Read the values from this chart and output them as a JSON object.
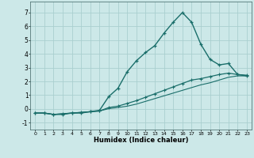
{
  "xlabel": "Humidex (Indice chaleur)",
  "xlim": [
    -0.5,
    23.5
  ],
  "ylim": [
    -1.5,
    7.8
  ],
  "yticks": [
    -1,
    0,
    1,
    2,
    3,
    4,
    5,
    6,
    7
  ],
  "xticks": [
    0,
    1,
    2,
    3,
    4,
    5,
    6,
    7,
    8,
    9,
    10,
    11,
    12,
    13,
    14,
    15,
    16,
    17,
    18,
    19,
    20,
    21,
    22,
    23
  ],
  "bg_color": "#cce8e8",
  "grid_color": "#aacfcf",
  "line_color": "#1a6e6a",
  "series1_x": [
    0,
    1,
    2,
    3,
    4,
    5,
    6,
    7,
    8,
    9,
    10,
    11,
    12,
    13,
    14,
    15,
    16,
    17,
    18,
    19,
    20,
    21,
    22,
    23
  ],
  "series1_y": [
    -0.3,
    -0.3,
    -0.4,
    -0.4,
    -0.3,
    -0.3,
    -0.2,
    -0.1,
    0.9,
    1.5,
    2.7,
    3.5,
    4.1,
    4.6,
    5.5,
    6.3,
    7.0,
    6.3,
    4.7,
    3.6,
    3.2,
    3.3,
    2.5,
    2.4
  ],
  "series2_x": [
    0,
    1,
    2,
    3,
    4,
    5,
    6,
    7,
    8,
    9,
    10,
    11,
    12,
    13,
    14,
    15,
    16,
    17,
    18,
    19,
    20,
    21,
    22,
    23
  ],
  "series2_y": [
    -0.3,
    -0.3,
    -0.4,
    -0.35,
    -0.3,
    -0.25,
    -0.2,
    -0.15,
    0.1,
    0.2,
    0.4,
    0.6,
    0.85,
    1.1,
    1.35,
    1.6,
    1.85,
    2.1,
    2.2,
    2.35,
    2.5,
    2.6,
    2.5,
    2.45
  ],
  "series3_x": [
    0,
    1,
    2,
    3,
    4,
    5,
    6,
    7,
    8,
    9,
    10,
    11,
    12,
    13,
    14,
    15,
    16,
    17,
    18,
    19,
    20,
    21,
    22,
    23
  ],
  "series3_y": [
    -0.3,
    -0.3,
    -0.4,
    -0.35,
    -0.3,
    -0.25,
    -0.2,
    -0.15,
    0.02,
    0.1,
    0.2,
    0.35,
    0.55,
    0.75,
    0.95,
    1.15,
    1.35,
    1.55,
    1.75,
    1.9,
    2.1,
    2.3,
    2.4,
    2.4
  ]
}
